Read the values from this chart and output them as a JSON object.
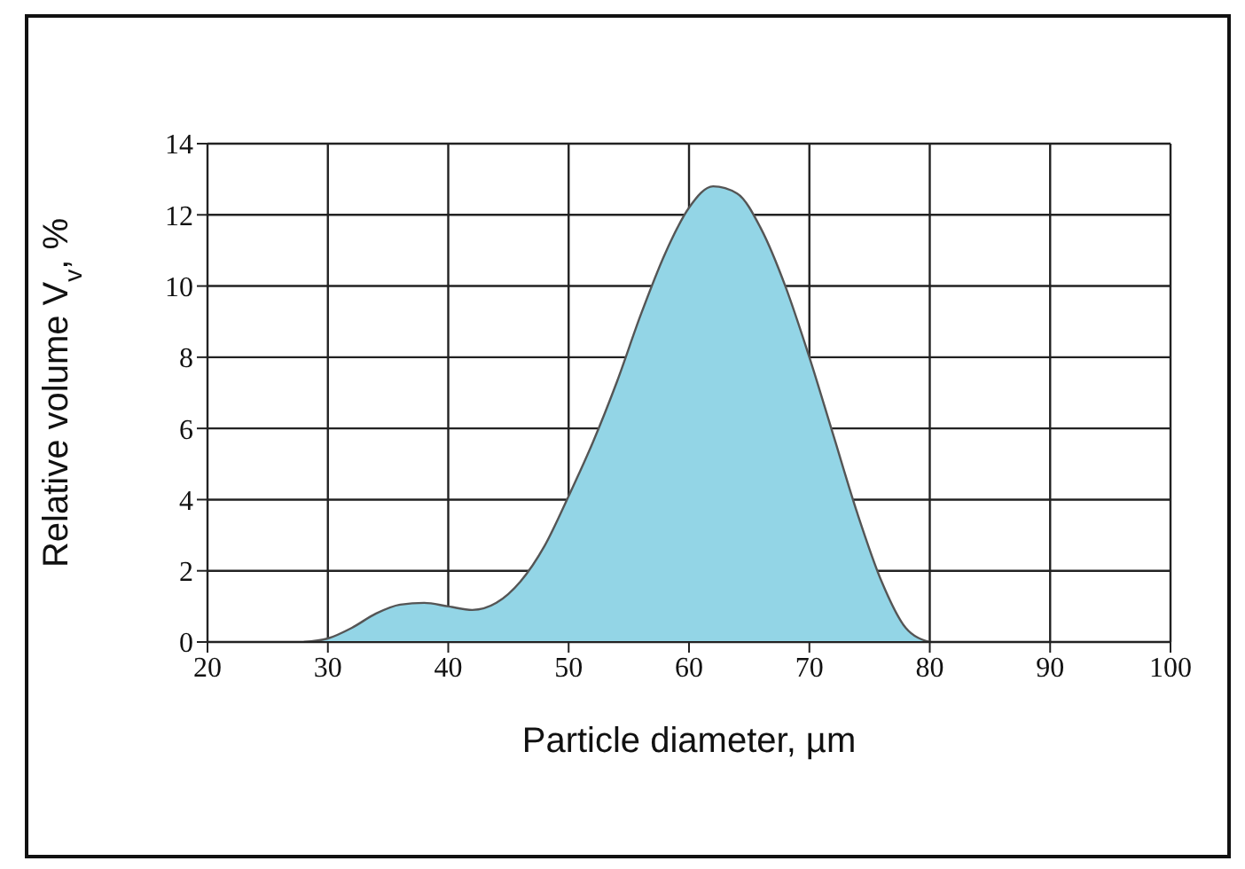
{
  "chart_data": {
    "type": "area",
    "xlabel": "Particle diameter, µm",
    "ylabel": "Relative volume V$_{v}$, %",
    "x": [
      28,
      30,
      32,
      34,
      36,
      38,
      40,
      42,
      44,
      46,
      48,
      50,
      52,
      54,
      56,
      58,
      60,
      62,
      64,
      66,
      68,
      70,
      72,
      74,
      76,
      78,
      80
    ],
    "series": [
      {
        "color": "#93d5e6",
        "values": [
          0,
          0.1,
          0.4,
          0.8,
          1.05,
          1.1,
          1.0,
          0.9,
          1.1,
          1.7,
          2.7,
          4.1,
          5.6,
          7.3,
          9.2,
          10.9,
          12.2,
          12.8,
          12.6,
          11.6,
          10.0,
          8.0,
          5.8,
          3.6,
          1.7,
          0.4,
          0
        ]
      }
    ],
    "xlim": [
      20,
      100
    ],
    "xticks": [
      20,
      30,
      40,
      50,
      60,
      70,
      80,
      90,
      100
    ],
    "ylim": [
      0,
      14
    ],
    "yticks": [
      0,
      2,
      4,
      6,
      8,
      10,
      12,
      14
    ],
    "grid": true,
    "legend": false
  }
}
